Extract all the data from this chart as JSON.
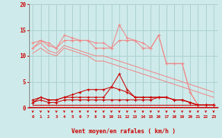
{
  "title": "",
  "xlabel": "Vent moyen/en rafales ( km/h )",
  "bg_color": "#ceeaea",
  "grid_color": "#aacfcf",
  "x": [
    0,
    1,
    2,
    3,
    4,
    5,
    6,
    7,
    8,
    9,
    10,
    11,
    12,
    13,
    14,
    15,
    16,
    17,
    18,
    19,
    20,
    21,
    22,
    23
  ],
  "line1_y": [
    11.5,
    13.0,
    12.5,
    11.5,
    14.0,
    13.5,
    13.0,
    13.0,
    11.5,
    11.5,
    11.5,
    16.0,
    13.5,
    13.0,
    11.5,
    11.5,
    14.0,
    8.5,
    8.5,
    8.5,
    3.0,
    0.5,
    0.5,
    0.5
  ],
  "line2_y": [
    12.5,
    13.0,
    12.0,
    11.5,
    13.0,
    13.0,
    13.0,
    13.0,
    12.5,
    12.5,
    11.5,
    13.0,
    13.0,
    13.0,
    12.5,
    11.5,
    14.0,
    8.5,
    8.5,
    8.5,
    3.0,
    0.5,
    0.5,
    0.5
  ],
  "line3_y": [
    11.5,
    12.5,
    11.0,
    10.5,
    12.0,
    11.5,
    11.0,
    10.5,
    10.0,
    10.0,
    9.5,
    9.0,
    8.5,
    8.0,
    7.5,
    7.0,
    6.5,
    6.0,
    5.5,
    5.0,
    4.5,
    4.0,
    3.5,
    3.0
  ],
  "line4_y": [
    10.5,
    11.5,
    10.5,
    10.0,
    11.5,
    11.0,
    10.5,
    10.0,
    9.0,
    9.0,
    8.5,
    8.0,
    7.5,
    7.0,
    6.5,
    6.0,
    5.5,
    5.0,
    4.5,
    4.0,
    3.5,
    3.0,
    2.5,
    2.0
  ],
  "line5_y": [
    1.5,
    2.0,
    1.5,
    1.5,
    2.0,
    2.0,
    2.0,
    2.0,
    2.0,
    2.0,
    4.0,
    6.5,
    3.5,
    2.0,
    2.0,
    2.0,
    2.0,
    2.0,
    1.5,
    1.5,
    1.0,
    0.5,
    0.5,
    0.5
  ],
  "line6_y": [
    1.0,
    2.0,
    1.5,
    1.5,
    2.0,
    2.5,
    3.0,
    3.5,
    3.5,
    3.5,
    4.0,
    3.5,
    3.0,
    2.0,
    2.0,
    2.0,
    2.0,
    2.0,
    1.5,
    1.5,
    1.0,
    0.5,
    0.5,
    0.5
  ],
  "line7_y": [
    1.0,
    1.5,
    1.0,
    1.0,
    1.5,
    1.5,
    1.5,
    1.5,
    1.5,
    1.5,
    1.5,
    1.5,
    1.5,
    1.5,
    1.5,
    1.5,
    2.0,
    2.0,
    1.5,
    1.5,
    1.0,
    0.5,
    0.5,
    0.5
  ],
  "line8_y": [
    0.5,
    0.5,
    0.5,
    0.5,
    0.5,
    0.5,
    0.5,
    0.5,
    0.5,
    0.5,
    0.5,
    0.5,
    0.5,
    0.5,
    0.5,
    0.5,
    0.5,
    0.5,
    0.5,
    0.5,
    0.5,
    0.5,
    0.5,
    0.5
  ],
  "ylim": [
    0,
    20
  ],
  "yticks": [
    0,
    5,
    10,
    15,
    20
  ],
  "xticks": [
    0,
    1,
    2,
    3,
    4,
    5,
    6,
    7,
    8,
    9,
    10,
    11,
    12,
    13,
    14,
    15,
    16,
    17,
    18,
    19,
    20,
    21,
    22,
    23
  ],
  "light_red": "#f08888",
  "dark_red": "#cc0000"
}
